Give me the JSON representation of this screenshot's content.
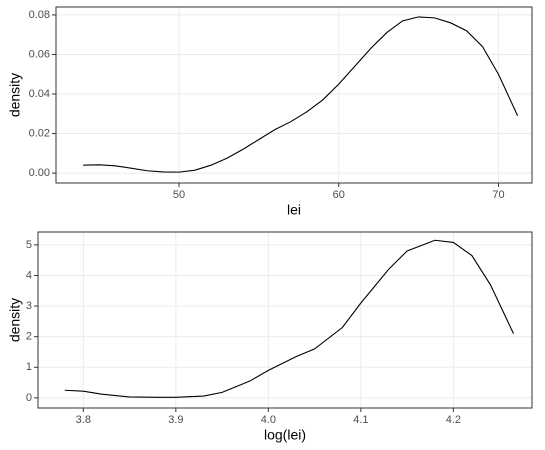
{
  "chart_data": [
    {
      "type": "line",
      "xlabel": "lei",
      "ylabel": "density",
      "color": "#000000",
      "grid": true,
      "x": [
        44,
        45,
        46,
        47,
        48,
        49,
        50,
        51,
        52,
        53,
        54,
        55,
        56,
        57,
        58,
        59,
        60,
        61,
        62,
        63,
        64,
        65,
        66,
        67,
        68,
        69,
        70,
        71.2
      ],
      "values": [
        0.004,
        0.0042,
        0.0037,
        0.0025,
        0.0012,
        0.0006,
        0.0005,
        0.0015,
        0.004,
        0.0075,
        0.012,
        0.017,
        0.022,
        0.026,
        0.031,
        0.037,
        0.045,
        0.054,
        0.063,
        0.071,
        0.077,
        0.079,
        0.0785,
        0.076,
        0.072,
        0.064,
        0.05,
        0.029
      ],
      "xlim": [
        42.3,
        72.1
      ],
      "ylim": [
        -0.005,
        0.084
      ],
      "xticks": [
        50,
        60,
        70
      ],
      "yticks": [
        {
          "value": 0,
          "label": "0.00"
        },
        {
          "value": 0.02,
          "label": "0.02"
        },
        {
          "value": 0.04,
          "label": "0.04"
        },
        {
          "value": 0.06,
          "label": "0.06"
        },
        {
          "value": 0.08,
          "label": "0.08"
        }
      ]
    },
    {
      "type": "line",
      "xlabel": "log(lei)",
      "ylabel": "density",
      "color": "#000000",
      "grid": true,
      "x": [
        3.78,
        3.8,
        3.82,
        3.85,
        3.88,
        3.9,
        3.93,
        3.95,
        3.98,
        4.0,
        4.03,
        4.05,
        4.08,
        4.1,
        4.13,
        4.15,
        4.18,
        4.2,
        4.22,
        4.24,
        4.265
      ],
      "values": [
        0.25,
        0.22,
        0.12,
        0.03,
        0.02,
        0.02,
        0.06,
        0.18,
        0.55,
        0.9,
        1.35,
        1.6,
        2.3,
        3.1,
        4.2,
        4.8,
        5.15,
        5.08,
        4.65,
        3.7,
        2.1
      ],
      "xlim": [
        3.751,
        4.285
      ],
      "ylim": [
        -0.33,
        5.42
      ],
      "xticks": [
        3.8,
        3.9,
        {
          "value": 4.0,
          "label": "4.0"
        },
        4.1,
        4.2
      ],
      "yticks": [
        0,
        1,
        2,
        3,
        4,
        5
      ]
    }
  ]
}
